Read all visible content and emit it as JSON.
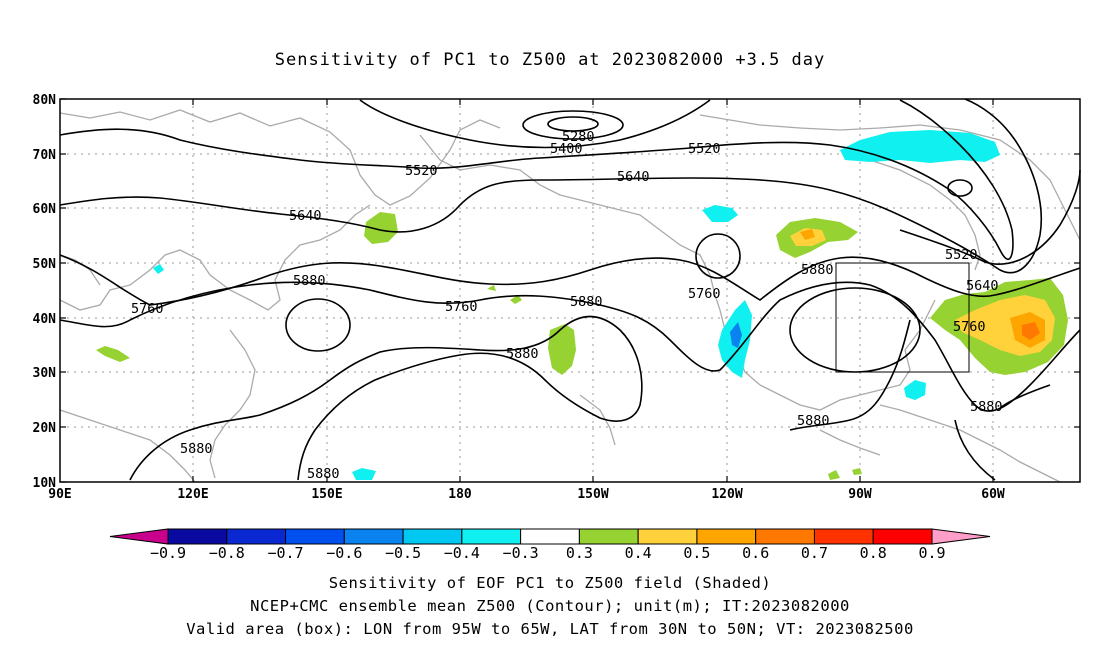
{
  "title": "Sensitivity of PC1 to Z500 at 2023082000 +3.5 day",
  "map": {
    "lat_labels": [
      "80N",
      "70N",
      "60N",
      "50N",
      "40N",
      "30N",
      "20N",
      "10N"
    ],
    "lon_labels": [
      "90E",
      "120E",
      "150E",
      "180",
      "150W",
      "120W",
      "90W",
      "60W"
    ],
    "contour_labels": [
      {
        "text": "5280"
      },
      {
        "text": "5400"
      },
      {
        "text": "5520"
      },
      {
        "text": "5520"
      },
      {
        "text": "5640"
      },
      {
        "text": "5640"
      },
      {
        "text": "5520"
      },
      {
        "text": "5640"
      },
      {
        "text": "5760"
      },
      {
        "text": "5880"
      },
      {
        "text": "5760"
      },
      {
        "text": "5880"
      },
      {
        "text": "5880"
      },
      {
        "text": "5760"
      },
      {
        "text": "5880"
      },
      {
        "text": "5760"
      },
      {
        "text": "5880"
      },
      {
        "text": "5880"
      },
      {
        "text": "5880"
      },
      {
        "text": "5880"
      }
    ],
    "valid_box": {
      "lon_from": "95W",
      "lon_to": "65W",
      "lat_from": "30N",
      "lat_to": "50N"
    }
  },
  "colorbar": {
    "labels": [
      "-0.9",
      "-0.8",
      "-0.7",
      "-0.6",
      "-0.5",
      "-0.4",
      "-0.3",
      "0.3",
      "0.4",
      "0.5",
      "0.6",
      "0.7",
      "0.8",
      "0.9"
    ],
    "colors": [
      "#c8008c",
      "#0a0aa0",
      "#0a28d2",
      "#0050f0",
      "#0a82f0",
      "#00c8f0",
      "#10f0f0",
      "#ffffff",
      "#96d232",
      "#ffd23c",
      "#ffa500",
      "#ff7800",
      "#ff3200",
      "#ff0000",
      "#ff9ec8"
    ]
  },
  "captions": {
    "line1": "Sensitivity of EOF PC1 to Z500 field (Shaded)",
    "line2": "NCEP+CMC ensemble mean Z500 (Contour); unit(m); IT:2023082000",
    "line3": "Valid area (box): LON from 95W to 65W, LAT from 30N to 50N; VT: 2023082500"
  }
}
